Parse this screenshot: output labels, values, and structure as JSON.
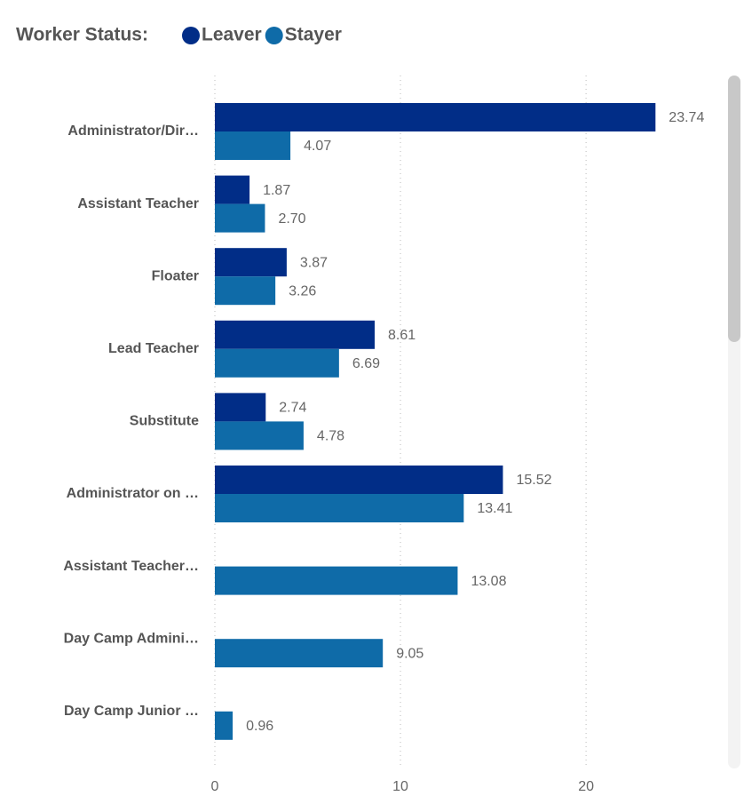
{
  "chart_data": {
    "type": "bar",
    "orientation": "horizontal",
    "legend_title": "Worker Status:",
    "legend_position": "top-left",
    "categories": [
      "Administrator/Dir…",
      "Assistant Teacher",
      "Floater",
      "Lead Teacher",
      "Substitute",
      "Administrator on …",
      "Assistant Teacher…",
      "Day Camp Admini…",
      "Day Camp Junior …"
    ],
    "series": [
      {
        "name": "Leaver",
        "color": "#012d87",
        "values": [
          23.74,
          1.87,
          3.87,
          8.61,
          2.74,
          15.52,
          null,
          null,
          null
        ],
        "value_labels": [
          "23.74",
          "1.87",
          "3.87",
          "8.61",
          "2.74",
          "15.52",
          null,
          null,
          null
        ]
      },
      {
        "name": "Stayer",
        "color": "#0f6ba8",
        "values": [
          4.07,
          2.7,
          3.26,
          6.69,
          4.78,
          13.41,
          13.08,
          9.05,
          0.96
        ],
        "value_labels": [
          "4.07",
          "2.70",
          "3.26",
          "6.69",
          "4.78",
          "13.41",
          "13.08",
          "9.05",
          "0.96"
        ]
      }
    ],
    "xlim": [
      0,
      26.5
    ],
    "xticks": [
      0,
      10,
      20
    ],
    "grid": true
  }
}
